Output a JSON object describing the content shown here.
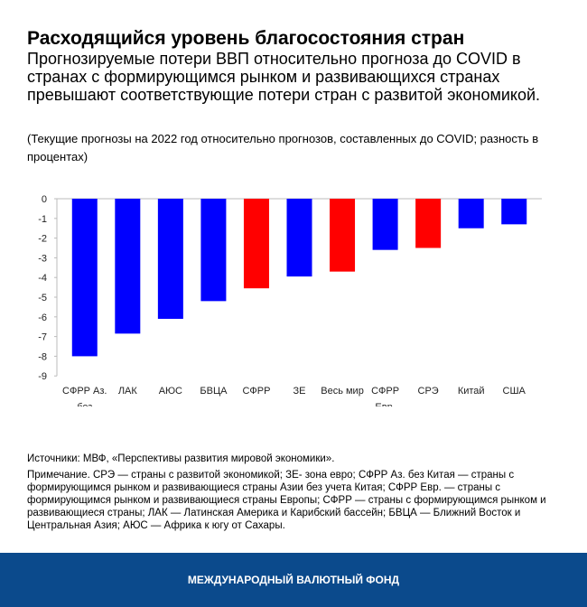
{
  "header": {
    "title": "Расходящийся уровень благосостояния стран",
    "subtitle": "Прогнозируемые потери ВВП относительно прогноза до COVID в странах с формирующимся рынком и развивающихся странах превышают соответствующие потери стран с развитой экономикой.",
    "note": "(Текущие прогнозы на 2022 год относительно прогнозов, составленных до COVID; разность в процентах)"
  },
  "chart_data": {
    "type": "bar",
    "categories": [
      "СФРР Аз. без Китая",
      "ЛАК",
      "АЮС",
      "БВЦА",
      "СФРР",
      "ЗЕ",
      "Весь мир",
      "СФРР Евр.",
      "СРЭ",
      "Китай",
      "США"
    ],
    "values": [
      -8.0,
      -6.85,
      -6.1,
      -5.2,
      -4.55,
      -3.95,
      -3.7,
      -2.6,
      -2.5,
      -1.5,
      -1.3
    ],
    "colors": [
      "#0000ff",
      "#0000ff",
      "#0000ff",
      "#0000ff",
      "#ff0000",
      "#0000ff",
      "#ff0000",
      "#0000ff",
      "#ff0000",
      "#0000ff",
      "#0000ff"
    ],
    "ylim": [
      -9,
      0
    ],
    "yticks": [
      "0",
      "-1",
      "-2",
      "-3",
      "-4",
      "-5",
      "-6",
      "-7",
      "-8",
      "-9"
    ],
    "grid": false
  },
  "sources": "Источники: МВФ, «Перспективы развития мировой экономики».",
  "explanation": "Примечание. СРЭ — страны с развитой экономикой; ЗЕ- зона евро; СФРР Аз. без Китая — страны с формирующимся рынком и развивающиеся страны Азии без учета Китая; СФРР Евр. — страны с формирующимся рынком и развивающиеся страны Европы; СФРР — страны с формирующимся рынком и развивающиеся страны; ЛАК — Латинская Америка и Карибский бассейн; БВЦА — Ближний Восток и Центральная Азия; АЮС — Африка к югу от Сахары.",
  "footer": "МЕЖДУНАРОДНЫЙ ВАЛЮТНЫЙ ФОНД"
}
